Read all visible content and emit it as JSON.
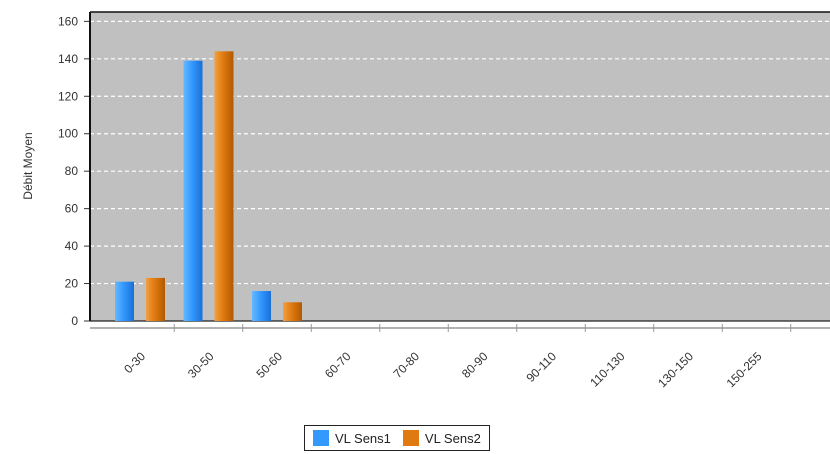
{
  "chart_data": {
    "type": "bar",
    "title": "",
    "xlabel": "",
    "ylabel": "Débit Moyen",
    "ylim": [
      0,
      165
    ],
    "yticks": [
      0,
      20,
      40,
      60,
      80,
      100,
      120,
      140,
      160
    ],
    "categories": [
      "0-30",
      "30-50",
      "50-60",
      "60-70",
      "70-80",
      "80-90",
      "90-110",
      "110-130",
      "130-150",
      "150-255"
    ],
    "series": [
      {
        "name": "VL Sens1",
        "color": "#3399ff",
        "values": [
          21,
          139,
          16,
          0,
          0,
          0,
          0,
          0,
          0,
          0
        ]
      },
      {
        "name": "VL Sens2",
        "color": "#e07a10",
        "values": [
          23,
          144,
          10,
          0,
          0,
          0,
          0,
          0,
          0,
          0
        ]
      }
    ],
    "grid": true,
    "plot_background": "#c0c0c0",
    "legend_position": "bottom"
  }
}
